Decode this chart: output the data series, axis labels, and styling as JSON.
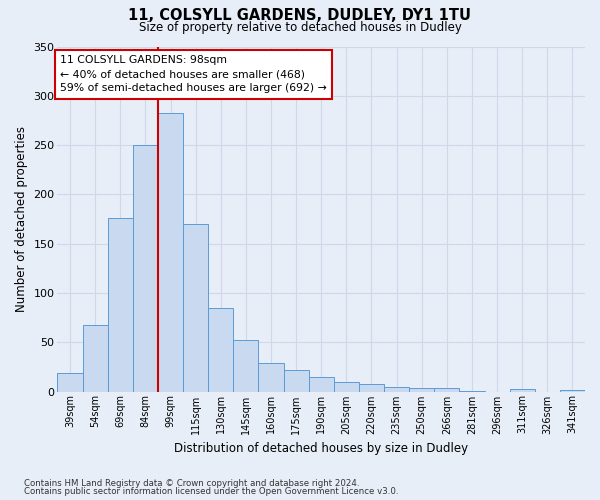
{
  "title": "11, COLSYLL GARDENS, DUDLEY, DY1 1TU",
  "subtitle": "Size of property relative to detached houses in Dudley",
  "xlabel": "Distribution of detached houses by size in Dudley",
  "ylabel": "Number of detached properties",
  "categories": [
    "39sqm",
    "54sqm",
    "69sqm",
    "84sqm",
    "99sqm",
    "115sqm",
    "130sqm",
    "145sqm",
    "160sqm",
    "175sqm",
    "190sqm",
    "205sqm",
    "220sqm",
    "235sqm",
    "250sqm",
    "266sqm",
    "281sqm",
    "296sqm",
    "311sqm",
    "326sqm",
    "341sqm"
  ],
  "values": [
    19,
    67,
    176,
    250,
    283,
    170,
    85,
    52,
    29,
    22,
    15,
    10,
    8,
    5,
    4,
    4,
    1,
    0,
    3,
    0,
    2
  ],
  "bar_color": "#c9d9f0",
  "bar_edge_color": "#5b9bd5",
  "vline_color": "#cc0000",
  "vline_index": 4,
  "ylim": [
    0,
    350
  ],
  "yticks": [
    0,
    50,
    100,
    150,
    200,
    250,
    300,
    350
  ],
  "annotation_title": "11 COLSYLL GARDENS: 98sqm",
  "annotation_line1": "← 40% of detached houses are smaller (468)",
  "annotation_line2": "59% of semi-detached houses are larger (692) →",
  "annotation_box_color": "#ffffff",
  "annotation_edge_color": "#cc0000",
  "grid_color": "#d0d8e8",
  "bg_color": "#e8eef8",
  "footnote1": "Contains HM Land Registry data © Crown copyright and database right 2024.",
  "footnote2": "Contains public sector information licensed under the Open Government Licence v3.0."
}
